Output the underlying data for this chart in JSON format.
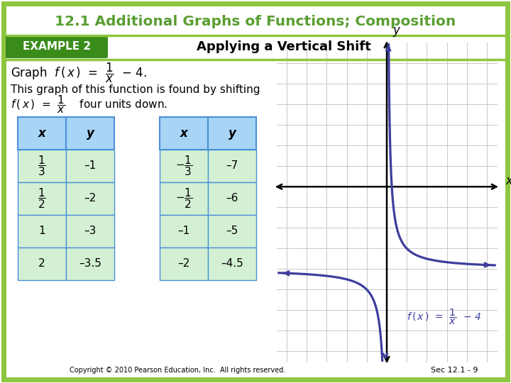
{
  "title": "12.1 Additional Graphs of Functions; Composition",
  "title_color": "#5a9e32",
  "example_label": "EXAMPLE 2",
  "example_bg": "#3a8c1a",
  "example_text_color": "#ffffff",
  "subtitle": "Applying a Vertical Shift",
  "bg_color": "#ffffff",
  "border_color": "#8dc63f",
  "text1": "This graph of this function is found by shifting",
  "text2": "four units down.",
  "table1_x": [
    "1/3",
    "1/2",
    "1",
    "2"
  ],
  "table1_y": [
    "–1",
    "–2",
    "–3",
    "–3.5"
  ],
  "table2_x": [
    "–1/3",
    "–1/2",
    "–1",
    "–2"
  ],
  "table2_y": [
    "–7",
    "–6",
    "–5",
    "–4.5"
  ],
  "table_header_bg": "#a8d4f5",
  "table_row_bg": "#d4f0d4",
  "table_border_color": "#4a90d9",
  "curve_color": "#3d3d9e",
  "grid_color": "#c8c8c8",
  "axis_color": "#000000",
  "label_color": "#3d3d9e",
  "copyright": "Copyright © 2010 Pearson Education, Inc.  All rights reserved.",
  "sec_ref": "Sec 12.1 - 9"
}
